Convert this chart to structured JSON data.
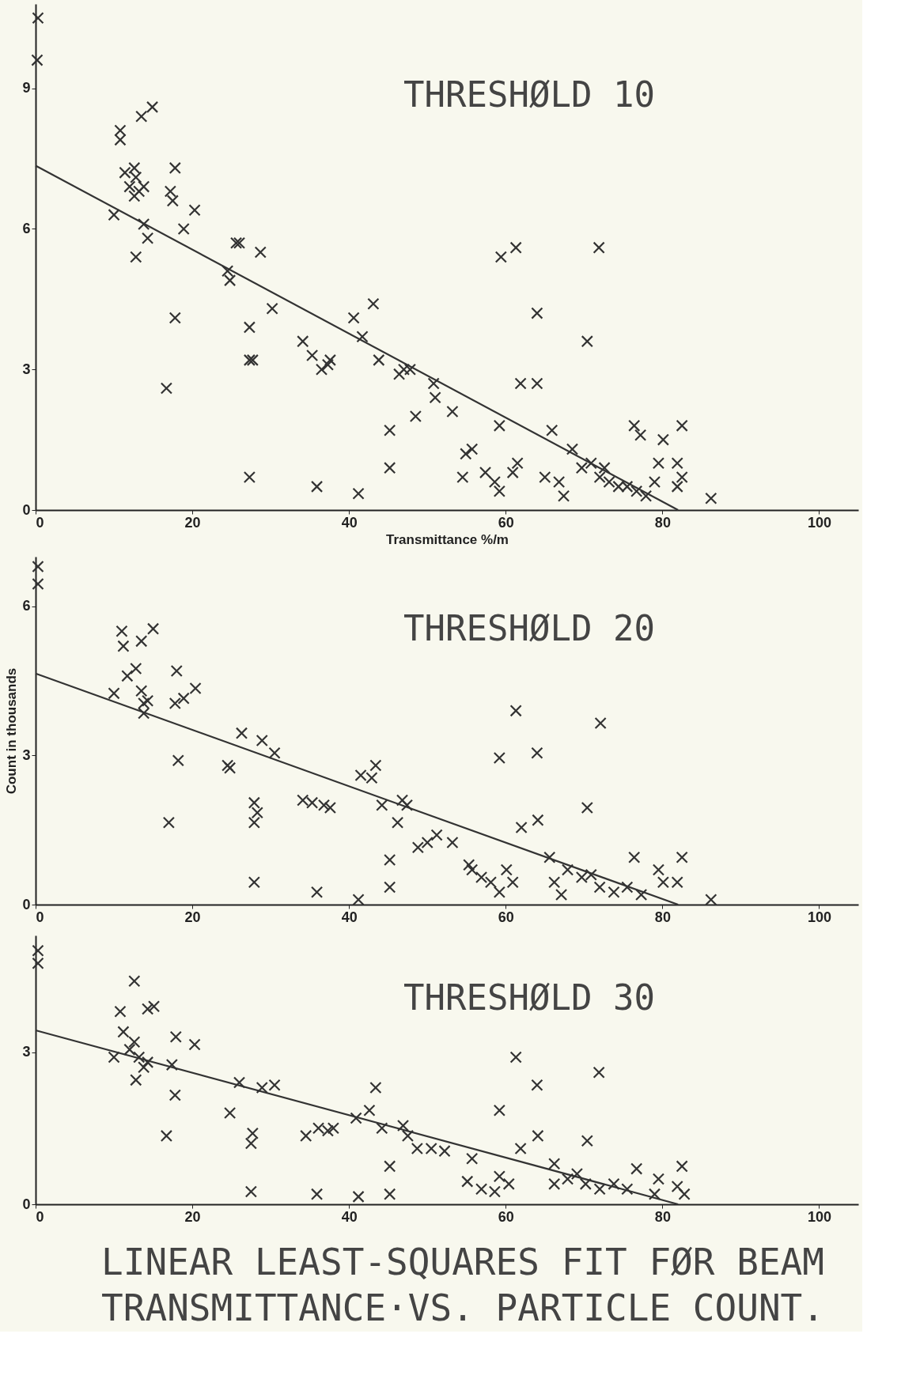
{
  "chart_data": [
    {
      "type": "scatter",
      "title": "THRESHØLD 10",
      "xlabel": "Transmittance %/m",
      "xlim": [
        0,
        105
      ],
      "ylim": [
        0,
        10.8
      ],
      "xticks": [
        0,
        20,
        40,
        60,
        80,
        100
      ],
      "yticks": [
        0,
        3,
        6,
        9
      ],
      "grid": false,
      "series": [
        {
          "color": "#333333",
          "marker": "cross",
          "x": [
            0.3,
            0.2,
            10.8,
            10.8,
            13.5,
            14.9,
            10,
            11.4,
            12.6,
            12.8,
            12,
            13.2,
            12.6,
            13.8,
            12.8,
            13.8,
            14.3,
            17.8,
            17.2,
            17.5,
            18.9,
            20.3,
            17.8,
            16.7,
            24.5,
            24.8,
            25.6,
            26,
            28.7,
            27.3,
            27.3,
            27.7,
            30.2,
            27.3,
            34.1,
            35.3,
            36.5,
            37.3,
            37.6,
            35.9,
            40.6,
            43.1,
            41.7,
            43.8,
            46.4,
            47,
            47.8,
            45.2,
            48.5,
            50.8,
            51,
            53.2,
            45.2,
            41.2,
            59.4,
            61.3,
            71.9,
            64,
            70.4,
            61.9,
            64,
            55.7,
            54.9,
            59.2,
            54.5,
            57.4,
            58.6,
            59.2,
            60.9,
            61.5,
            65.9,
            65,
            66.8,
            67.4,
            68.5,
            69.7,
            70.9,
            72,
            73.2,
            74.4,
            75.5,
            76.7,
            77.9,
            76.4,
            77.2,
            80.1,
            79.5,
            82.5,
            81.9,
            82.5,
            81.9,
            86.2,
            72.6,
            79
          ],
          "values": [
            10.5,
            9.6,
            8.1,
            7.9,
            8.4,
            8.6,
            6.3,
            7.2,
            7.3,
            7.1,
            6.9,
            6.8,
            6.7,
            6.9,
            5.4,
            6.1,
            5.8,
            7.3,
            6.8,
            6.6,
            6.0,
            6.4,
            4.1,
            2.6,
            5.1,
            4.9,
            5.7,
            5.7,
            5.5,
            3.9,
            3.2,
            3.2,
            4.3,
            0.7,
            3.6,
            3.3,
            3.0,
            3.1,
            3.2,
            0.5,
            4.1,
            4.4,
            3.7,
            3.2,
            2.9,
            3.0,
            3.0,
            1.7,
            2.0,
            2.7,
            2.4,
            2.1,
            0.9,
            0.35,
            5.4,
            5.6,
            5.6,
            4.2,
            3.6,
            2.7,
            2.7,
            1.3,
            1.2,
            1.8,
            0.7,
            0.8,
            0.6,
            0.4,
            0.8,
            1.0,
            1.7,
            0.7,
            0.6,
            0.3,
            1.3,
            0.9,
            1.0,
            0.7,
            0.6,
            0.5,
            0.5,
            0.4,
            0.3,
            1.8,
            1.6,
            1.5,
            1.0,
            1.8,
            1.0,
            0.7,
            0.5,
            0.25,
            0.9,
            0.6
          ]
        },
        {
          "type": "line",
          "color": "#333333",
          "line_style": "solid",
          "marker": "none",
          "x": [
            0,
            82
          ],
          "values": [
            7.35,
            0
          ]
        }
      ]
    },
    {
      "type": "scatter",
      "title": "THRESHØLD 20",
      "ylabel": "Count in thousands",
      "xlim": [
        0,
        105
      ],
      "ylim": [
        0,
        7.0
      ],
      "xticks": [
        0,
        20,
        40,
        60,
        80,
        100
      ],
      "yticks": [
        0,
        3,
        6
      ],
      "grid": false,
      "series": [
        {
          "color": "#333333",
          "marker": "cross",
          "x": [
            0.3,
            0.3,
            11,
            11.2,
            13.5,
            15,
            10,
            11.7,
            12.8,
            13.5,
            13.8,
            13.8,
            14.3,
            18,
            17.8,
            18.9,
            20.4,
            18.2,
            17,
            24.5,
            24.8,
            26.3,
            28.9,
            30.5,
            27.9,
            28.3,
            27.9,
            27.9,
            34.1,
            35.3,
            36.8,
            37.6,
            35.9,
            41.2,
            41.5,
            42.9,
            43.4,
            44.2,
            45.2,
            45.2,
            46.8,
            47.4,
            46.2,
            48.8,
            50,
            51.2,
            53.2,
            55.3,
            61.3,
            72.1,
            59.2,
            64,
            70.4,
            62,
            64.1,
            55.7,
            56.9,
            58.1,
            59.2,
            60.9,
            60.1,
            65.6,
            66.2,
            67.9,
            69.7,
            70.9,
            72,
            73.8,
            75.5,
            77.3,
            76.4,
            79.5,
            80.1,
            82.5,
            81.9,
            86.2,
            67.1
          ],
          "values": [
            6.8,
            6.45,
            5.5,
            5.2,
            5.3,
            5.55,
            4.25,
            4.6,
            4.75,
            4.3,
            4.05,
            3.85,
            4.1,
            4.7,
            4.05,
            4.15,
            4.35,
            2.9,
            1.65,
            2.8,
            2.75,
            3.45,
            3.3,
            3.05,
            2.05,
            1.85,
            1.65,
            0.45,
            2.1,
            2.05,
            2.0,
            1.95,
            0.25,
            0.1,
            2.6,
            2.55,
            2.8,
            2.0,
            0.9,
            0.35,
            2.1,
            2.0,
            1.65,
            1.15,
            1.25,
            1.4,
            1.25,
            0.8,
            3.9,
            3.65,
            2.95,
            3.05,
            1.95,
            1.55,
            1.7,
            0.7,
            0.55,
            0.45,
            0.25,
            0.45,
            0.7,
            0.95,
            0.45,
            0.7,
            0.55,
            0.6,
            0.35,
            0.25,
            0.35,
            0.2,
            0.95,
            0.7,
            0.45,
            0.95,
            0.45,
            0.1,
            0.2
          ]
        },
        {
          "type": "line",
          "color": "#333333",
          "line_style": "solid",
          "marker": "none",
          "x": [
            0,
            82
          ],
          "values": [
            4.65,
            0
          ]
        }
      ]
    },
    {
      "type": "scatter",
      "title": "THRESHØLD 30",
      "xlim": [
        0,
        105
      ],
      "ylim": [
        0,
        5.3
      ],
      "xticks": [
        0,
        20,
        40,
        60,
        80,
        100
      ],
      "yticks": [
        0,
        3
      ],
      "grid": false,
      "annotations": [
        "LINEAR LEAST-SQUARES FIT FØR BEAM",
        "TRANSMITTANCE·VS. PARTICLE COUNT."
      ],
      "series": [
        {
          "color": "#333333",
          "marker": "cross",
          "x": [
            0.3,
            0.3,
            12.6,
            10.8,
            11.2,
            14.3,
            15.1,
            10,
            12,
            12.6,
            13.2,
            13.8,
            12.8,
            14.3,
            17.9,
            17.4,
            20.3,
            17.8,
            16.7,
            26,
            28.9,
            30.5,
            24.8,
            27.7,
            27.5,
            27.5,
            34.5,
            36.1,
            37.3,
            38,
            35.9,
            41.2,
            45.2,
            40.9,
            42.6,
            43.4,
            45.2,
            44.2,
            46.9,
            47.5,
            48.7,
            50.5,
            52.2,
            61.3,
            64,
            71.9,
            59.2,
            61.9,
            64.1,
            70.4,
            55.7,
            55.1,
            56.9,
            58.6,
            60.4,
            59.2,
            66.2,
            66.2,
            67.9,
            69.1,
            70.2,
            72,
            73.8,
            75.5,
            76.7,
            79,
            79.5,
            82.5,
            81.9,
            82.8
          ],
          "values": [
            5.0,
            4.75,
            4.4,
            3.8,
            3.4,
            3.85,
            3.9,
            2.9,
            3.05,
            3.2,
            2.9,
            2.7,
            2.45,
            2.8,
            3.3,
            2.75,
            3.15,
            2.15,
            1.35,
            2.4,
            2.3,
            2.35,
            1.8,
            1.4,
            1.2,
            0.25,
            1.35,
            1.5,
            1.45,
            1.5,
            0.2,
            0.15,
            0.2,
            1.7,
            1.85,
            2.3,
            0.75,
            1.5,
            1.55,
            1.35,
            1.1,
            1.1,
            1.05,
            2.9,
            2.35,
            2.6,
            1.85,
            1.1,
            1.35,
            1.25,
            0.9,
            0.45,
            0.3,
            0.25,
            0.4,
            0.55,
            0.8,
            0.4,
            0.5,
            0.6,
            0.4,
            0.3,
            0.4,
            0.3,
            0.7,
            0.2,
            0.5,
            0.75,
            0.35,
            0.2
          ]
        },
        {
          "type": "line",
          "color": "#333333",
          "line_style": "solid",
          "marker": "none",
          "x": [
            0,
            82
          ],
          "values": [
            3.43,
            0
          ]
        }
      ]
    }
  ]
}
